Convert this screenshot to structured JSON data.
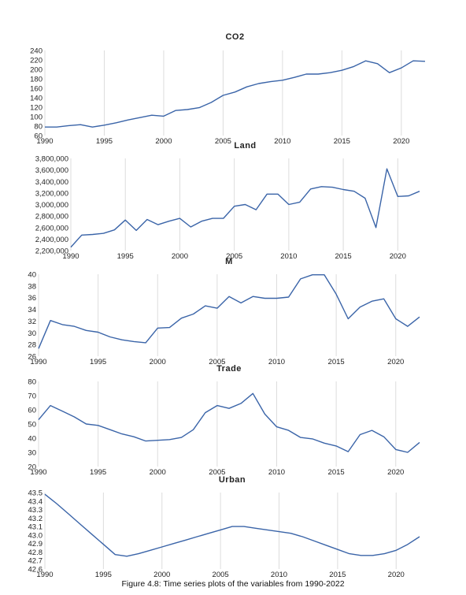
{
  "caption": "Figure 4.8: Time series plots of the variables from 1990-2022",
  "chart_data": [
    {
      "type": "line",
      "title": "CO2",
      "x": [
        1990,
        1991,
        1992,
        1993,
        1994,
        1995,
        1996,
        1997,
        1998,
        1999,
        2000,
        2001,
        2002,
        2003,
        2004,
        2005,
        2006,
        2007,
        2008,
        2009,
        2010,
        2011,
        2012,
        2013,
        2014,
        2015,
        2016,
        2017,
        2018,
        2019,
        2020,
        2021,
        2022
      ],
      "series": [
        {
          "values": [
            78,
            78,
            81,
            83,
            78,
            82,
            87,
            93,
            98,
            103,
            101,
            113,
            115,
            119,
            130,
            145,
            152,
            163,
            170,
            174,
            177,
            183,
            190,
            190,
            193,
            198,
            206,
            218,
            212,
            193,
            203,
            218,
            217
          ]
        }
      ],
      "xlim": [
        1990,
        2022
      ],
      "ylim": [
        60,
        240
      ],
      "xticks": [
        1990,
        1995,
        2000,
        2005,
        2010,
        2015,
        2020
      ],
      "yticks": [
        60,
        80,
        100,
        120,
        140,
        160,
        180,
        200,
        220,
        240
      ],
      "ytick_labels": [
        "60",
        "80",
        "100",
        "120",
        "140",
        "160",
        "180",
        "200",
        "220",
        "240"
      ],
      "grid": "vertical"
    },
    {
      "type": "line",
      "title": "Land",
      "x": [
        1990,
        1991,
        1992,
        1993,
        1994,
        1995,
        1996,
        1997,
        1998,
        1999,
        2000,
        2001,
        2002,
        2003,
        2004,
        2005,
        2006,
        2007,
        2008,
        2009,
        2010,
        2011,
        2012,
        2013,
        2014,
        2015,
        2016,
        2017,
        2018,
        2019,
        2020,
        2021,
        2022
      ],
      "series": [
        {
          "values": [
            2260000,
            2470000,
            2480000,
            2500000,
            2560000,
            2730000,
            2550000,
            2740000,
            2650000,
            2710000,
            2760000,
            2610000,
            2710000,
            2760000,
            2760000,
            2970000,
            3000000,
            2910000,
            3180000,
            3180000,
            3000000,
            3040000,
            3270000,
            3310000,
            3300000,
            3260000,
            3230000,
            3110000,
            2600000,
            3620000,
            3140000,
            3150000,
            3230000
          ]
        }
      ],
      "xlim": [
        1990,
        2022
      ],
      "ylim": [
        2200000,
        3800000
      ],
      "xticks": [
        1990,
        1995,
        2000,
        2005,
        2010,
        2015,
        2020
      ],
      "yticks": [
        2200000,
        2400000,
        2600000,
        2800000,
        3000000,
        3200000,
        3400000,
        3600000,
        3800000
      ],
      "ytick_labels": [
        "2,200,000",
        "2,400,000",
        "2,600,000",
        "2,800,000",
        "3,000,000",
        "3,200,000",
        "3,400,000",
        "3,600,000",
        "3,800,000"
      ],
      "grid": "vertical"
    },
    {
      "type": "line",
      "title": "M",
      "x": [
        1990,
        1991,
        1992,
        1993,
        1994,
        1995,
        1996,
        1997,
        1998,
        1999,
        2000,
        2001,
        2002,
        2003,
        2004,
        2005,
        2006,
        2007,
        2008,
        2009,
        2010,
        2011,
        2012,
        2013,
        2014,
        2015,
        2016,
        2017,
        2018,
        2019,
        2020,
        2021,
        2022
      ],
      "series": [
        {
          "values": [
            27.3,
            32.1,
            31.4,
            31.1,
            30.4,
            30.1,
            29.3,
            28.8,
            28.5,
            28.3,
            30.8,
            30.9,
            32.5,
            33.2,
            34.6,
            34.2,
            36.2,
            35.1,
            36.2,
            35.9,
            35.9,
            36.1,
            39.2,
            39.9,
            39.9,
            36.6,
            32.4,
            34.4,
            35.4,
            35.8,
            32.4,
            31.1,
            32.7
          ]
        }
      ],
      "xlim": [
        1990,
        2022
      ],
      "ylim": [
        26,
        40
      ],
      "xticks": [
        1990,
        1995,
        2000,
        2005,
        2010,
        2015,
        2020
      ],
      "yticks": [
        26,
        28,
        30,
        32,
        34,
        36,
        38,
        40
      ],
      "ytick_labels": [
        "26",
        "28",
        "30",
        "32",
        "34",
        "36",
        "38",
        "40"
      ],
      "grid": "vertical"
    },
    {
      "type": "line",
      "title": "Trade",
      "x": [
        1990,
        1991,
        1992,
        1993,
        1994,
        1995,
        1996,
        1997,
        1998,
        1999,
        2000,
        2001,
        2002,
        2003,
        2004,
        2005,
        2006,
        2007,
        2008,
        2009,
        2010,
        2011,
        2012,
        2013,
        2014,
        2015,
        2016,
        2017,
        2018,
        2019,
        2020,
        2021,
        2022
      ],
      "series": [
        {
          "values": [
            53,
            63,
            59,
            55,
            50,
            49,
            46,
            43,
            41,
            38,
            38.5,
            39,
            40.5,
            46,
            58,
            63,
            61,
            64.5,
            71.5,
            57,
            48,
            45.5,
            40.5,
            39.5,
            36.5,
            34.5,
            30.5,
            42.5,
            45.5,
            41,
            32,
            30,
            37
          ]
        }
      ],
      "xlim": [
        1990,
        2022
      ],
      "ylim": [
        20,
        80
      ],
      "xticks": [
        1990,
        1995,
        2000,
        2005,
        2010,
        2015,
        2020
      ],
      "yticks": [
        20,
        30,
        40,
        50,
        60,
        70,
        80
      ],
      "ytick_labels": [
        "20",
        "30",
        "40",
        "50",
        "60",
        "70",
        "80"
      ],
      "grid": "vertical"
    },
    {
      "type": "line",
      "title": "Urban",
      "x": [
        1990,
        1991,
        1992,
        1993,
        1994,
        1995,
        1996,
        1997,
        1998,
        1999,
        2000,
        2001,
        2002,
        2003,
        2004,
        2005,
        2006,
        2007,
        2008,
        2009,
        2010,
        2011,
        2012,
        2013,
        2014,
        2015,
        2016,
        2017,
        2018,
        2019,
        2020,
        2021,
        2022
      ],
      "series": [
        {
          "values": [
            43.48,
            43.37,
            43.25,
            43.13,
            43.01,
            42.89,
            42.77,
            42.75,
            42.78,
            42.82,
            42.86,
            42.9,
            42.94,
            42.98,
            43.02,
            43.06,
            43.1,
            43.1,
            43.08,
            43.06,
            43.04,
            43.02,
            42.98,
            42.93,
            42.88,
            42.83,
            42.78,
            42.76,
            42.76,
            42.78,
            42.82,
            42.89,
            42.98
          ]
        }
      ],
      "xlim": [
        1990,
        2022
      ],
      "ylim": [
        42.6,
        43.5
      ],
      "xticks": [
        1990,
        1995,
        2000,
        2005,
        2010,
        2015,
        2020
      ],
      "yticks": [
        42.6,
        42.7,
        42.8,
        42.9,
        43.0,
        43.1,
        43.2,
        43.3,
        43.4,
        43.5
      ],
      "ytick_labels": [
        "42.6",
        "42.7",
        "42.8",
        "42.9",
        "43.0",
        "43.1",
        "43.2",
        "43.3",
        "43.4",
        "43.5"
      ],
      "grid": "vertical"
    }
  ]
}
